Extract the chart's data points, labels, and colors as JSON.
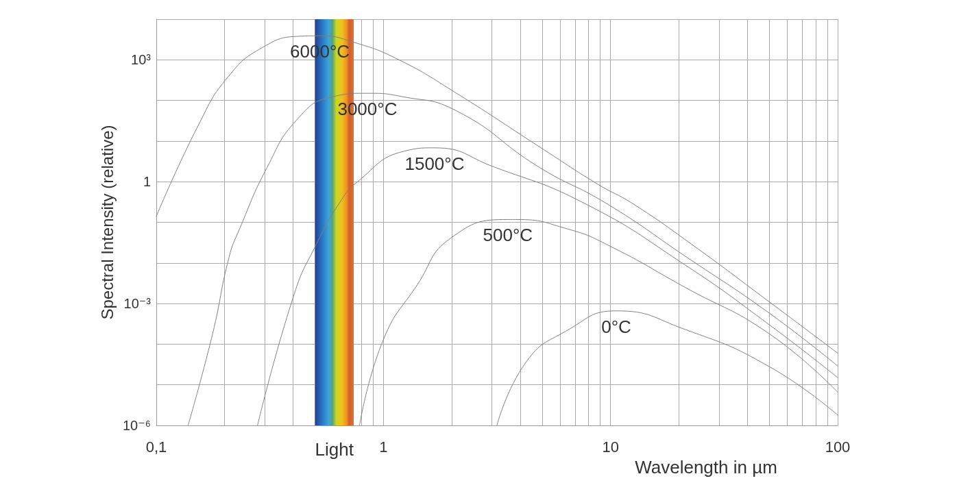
{
  "chart_data": {
    "type": "line",
    "xlabel": "Wavelength in µm",
    "ylabel": "Spectral Intensity (relative)",
    "log": "xy",
    "grid": true,
    "marker": "none",
    "line_style": "solid",
    "xlim": [
      0.1,
      100
    ],
    "xticks": [
      {
        "value": 0.1,
        "label": "0,1"
      },
      1,
      10,
      100
    ],
    "ylim": [
      1e-06,
      10000
    ],
    "yticks": [
      {
        "value": 1e-06,
        "label": "10⁻⁶"
      },
      {
        "value": 0.001,
        "label": "10⁻³"
      },
      1,
      {
        "value": 1000,
        "label": "10³"
      }
    ],
    "bands": [
      {
        "axis": "x",
        "from": 0.5,
        "to": 0.74,
        "label": "Light"
      }
    ],
    "series": [
      {
        "name": "6000°C",
        "color": "#808080",
        "x": [
          0.1,
          0.154,
          0.207,
          0.293,
          0.426,
          0.525,
          0.74,
          1.17,
          2.09,
          4.83,
          8.8,
          12.5,
          22.7,
          50,
          100
        ],
        "values": [
          0.14,
          26,
          380,
          2000,
          3800,
          3900,
          2700,
          1000,
          152,
          7.4,
          0.86,
          0.29,
          0.029,
          0.0011,
          6e-05
        ]
      },
      {
        "name": "3000°C",
        "color": "#808080",
        "x": [
          0.138,
          0.177,
          0.209,
          0.233,
          0.307,
          0.415,
          0.586,
          0.85,
          1.2,
          2.09,
          4.83,
          9.6,
          21.3,
          50,
          100
        ],
        "values": [
          1e-06,
          0.00018,
          0.0137,
          0.07,
          2.2,
          33,
          120,
          150,
          125,
          56,
          2.3,
          0.29,
          0.0147,
          0.00058,
          2.9e-05
        ]
      },
      {
        "name": "1500°C",
        "color": "#808080",
        "x": [
          0.279,
          0.406,
          0.507,
          0.63,
          0.77,
          1.23,
          1.68,
          3.07,
          7.7,
          21.3,
          50,
          100
        ],
        "values": [
          1e-06,
          0.0018,
          0.029,
          0.26,
          1,
          5.6,
          6.8,
          2.3,
          0.29,
          0.0089,
          0.0003,
          1.5e-05
        ]
      },
      {
        "name": "500°C",
        "color": "#808080",
        "x": [
          0.785,
          1,
          1.41,
          1.97,
          3.53,
          3.87,
          6.5,
          9.8,
          21.3,
          50,
          100
        ],
        "values": [
          1e-06,
          0.00013,
          0.0029,
          0.04,
          0.117,
          0.117,
          0.068,
          0.027,
          0.0025,
          0.00018,
          6.6e-06
        ]
      },
      {
        "name": "0°C",
        "color": "#808080",
        "x": [
          3.16,
          4.26,
          6.37,
          10.6,
          21.3,
          50,
          100
        ],
        "values": [
          1e-06,
          3.7e-05,
          0.00021,
          0.00066,
          0.00023,
          2.8e-05,
          1.8e-06
        ]
      }
    ]
  }
}
